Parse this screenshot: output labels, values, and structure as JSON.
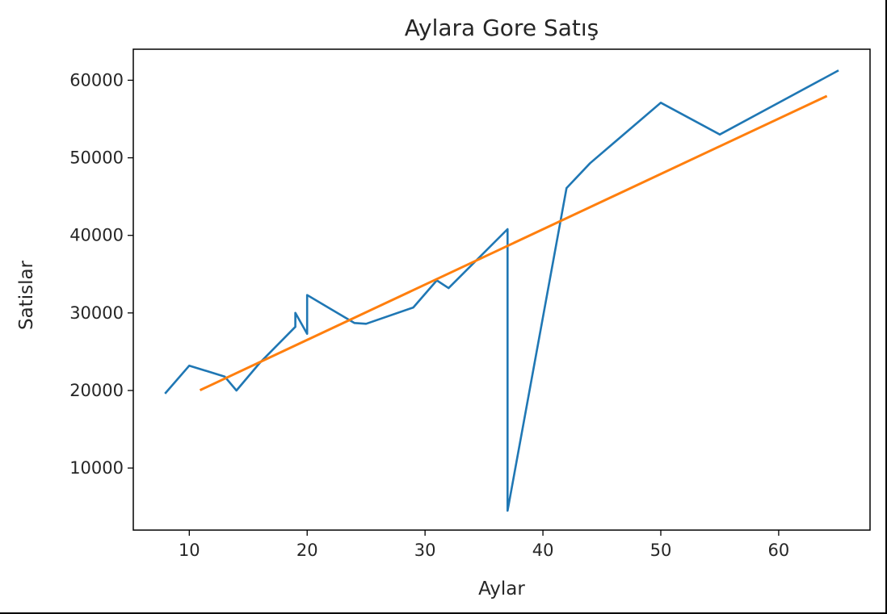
{
  "chart_data": {
    "type": "line",
    "title": "Aylara Gore Satış",
    "xlabel": "Aylar",
    "ylabel": "Satislar",
    "xlim": [
      5.25,
      67.75
    ],
    "ylim": [
      2000,
      64000
    ],
    "xticks": [
      10,
      20,
      30,
      40,
      50,
      60
    ],
    "yticks": [
      10000,
      20000,
      30000,
      40000,
      50000,
      60000
    ],
    "grid": false,
    "series": [
      {
        "color": "#1f77b4",
        "x": [
          8,
          10,
          13,
          14,
          16,
          19,
          19,
          20,
          20,
          24,
          25,
          29,
          31,
          32,
          37,
          37,
          42,
          44,
          50,
          55,
          65
        ],
        "y": [
          19700,
          23200,
          21800,
          20000,
          23600,
          28200,
          30000,
          27300,
          32300,
          28700,
          28600,
          30700,
          34200,
          33200,
          40800,
          4500,
          46100,
          49300,
          57100,
          53000,
          61200
        ]
      },
      {
        "color": "#ff7f0e",
        "x": [
          11,
          64
        ],
        "y": [
          20100,
          57900
        ]
      }
    ]
  }
}
